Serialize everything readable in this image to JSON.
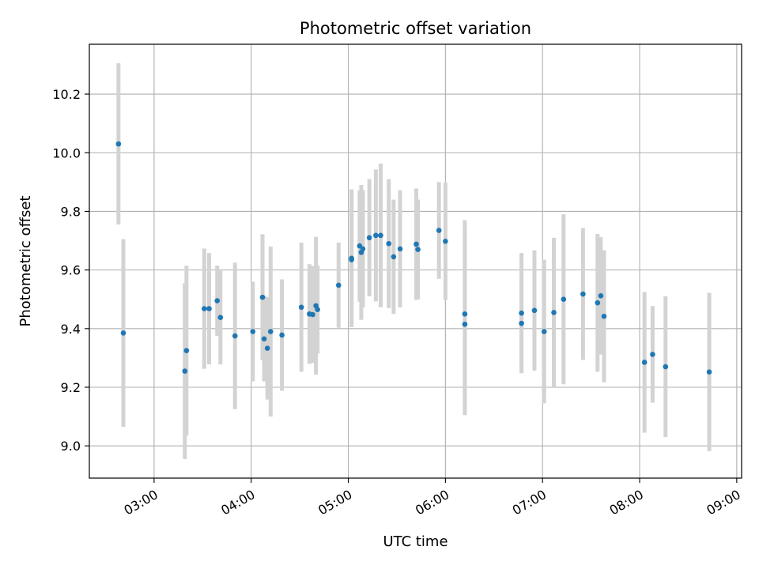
{
  "chart_data": {
    "type": "scatter",
    "title": "Photometric offset variation",
    "xlabel": "UTC time",
    "ylabel": "Photometric offset",
    "x_tick_labels": [
      "03:00",
      "04:00",
      "05:00",
      "06:00",
      "07:00",
      "08:00",
      "09:00"
    ],
    "y_tick_labels": [
      "9.0",
      "9.2",
      "9.4",
      "9.6",
      "9.8",
      "10.0",
      "10.2"
    ],
    "y_ticks": [
      9.0,
      9.2,
      9.4,
      9.6,
      9.8,
      10.0,
      10.2
    ],
    "xlim": [
      "02:20",
      "09:03"
    ],
    "ylim": [
      8.89,
      10.37
    ],
    "grid": true,
    "colors": {
      "points": "#1f77b4",
      "error_bars": "#d3d3d3",
      "grid": "#b0b0b0"
    },
    "series": [
      {
        "x": [
          "02:38",
          "02:41",
          "03:19",
          "03:20",
          "03:31",
          "03:34",
          "03:39",
          "03:41",
          "03:50",
          "04:01",
          "04:07",
          "04:08",
          "04:10",
          "04:12",
          "04:19",
          "04:31",
          "04:36",
          "04:38",
          "04:40",
          "04:41",
          "04:54",
          "05:02",
          "05:02",
          "05:07",
          "05:08",
          "05:09",
          "05:13",
          "05:17",
          "05:20",
          "05:25",
          "05:28",
          "05:32",
          "05:42",
          "05:43",
          "05:56",
          "06:00",
          "06:12",
          "06:12",
          "06:47",
          "06:47",
          "06:55",
          "07:01",
          "07:07",
          "07:13",
          "07:25",
          "07:34",
          "07:36",
          "07:38",
          "08:03",
          "08:08",
          "08:16",
          "08:43"
        ],
        "y": [
          10.03,
          9.385,
          9.255,
          9.325,
          9.468,
          9.468,
          9.495,
          9.438,
          9.375,
          9.39,
          9.507,
          9.365,
          9.333,
          9.39,
          9.378,
          9.473,
          9.45,
          9.448,
          9.478,
          9.465,
          9.548,
          9.64,
          9.635,
          9.682,
          9.66,
          9.672,
          9.71,
          9.718,
          9.718,
          9.69,
          9.645,
          9.672,
          9.688,
          9.67,
          9.735,
          9.698,
          9.45,
          9.415,
          9.418,
          9.453,
          9.462,
          9.39,
          9.455,
          9.5,
          9.518,
          9.488,
          9.512,
          9.442,
          9.285,
          9.312,
          9.27,
          9.252
        ],
        "err": [
          0.275,
          0.32,
          0.3,
          0.29,
          0.205,
          0.19,
          0.12,
          0.16,
          0.25,
          0.17,
          0.215,
          0.145,
          0.175,
          0.29,
          0.19,
          0.22,
          0.17,
          0.165,
          0.235,
          0.15,
          0.145,
          0.235,
          0.225,
          0.19,
          0.23,
          0.2,
          0.2,
          0.225,
          0.245,
          0.22,
          0.195,
          0.2,
          0.19,
          0.17,
          0.165,
          0.2,
          0.32,
          0.31,
          0.165,
          0.205,
          0.205,
          0.245,
          0.255,
          0.29,
          0.225,
          0.235,
          0.2,
          0.225,
          0.24,
          0.165,
          0.24,
          0.27
        ]
      }
    ]
  }
}
